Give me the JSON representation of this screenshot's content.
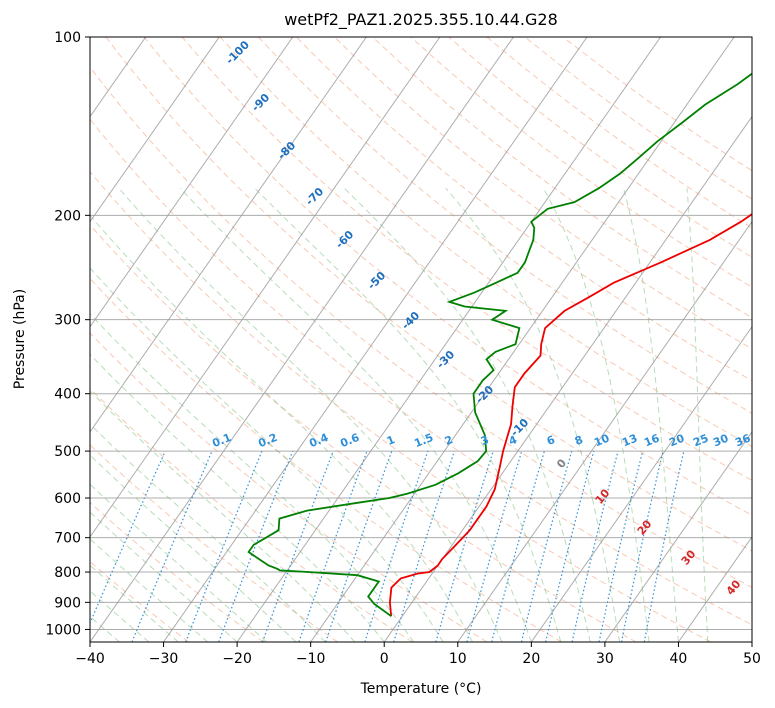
{
  "chart_data": {
    "type": "line",
    "title": "wetPf2_PAZ1.2025.355.10.44.G28",
    "xlabel": "Temperature (°C)",
    "ylabel": "Pressure (hPa)",
    "xlim": [
      -40,
      50
    ],
    "ylim": [
      1050,
      100
    ],
    "y_scale": "log",
    "grid": true,
    "x_ticks": [
      "−40",
      "−30",
      "−20",
      "−10",
      "0",
      "10",
      "20",
      "30",
      "40",
      "50"
    ],
    "y_ticks": [
      "100",
      "200",
      "300",
      "400",
      "500",
      "600",
      "700",
      "800",
      "900",
      "1000"
    ],
    "isotherm_labels": [
      {
        "text": "-100",
        "t": -100
      },
      {
        "text": "-90",
        "t": -90
      },
      {
        "text": "-80",
        "t": -80
      },
      {
        "text": "-70",
        "t": -70
      },
      {
        "text": "-60",
        "t": -60
      },
      {
        "text": "-50",
        "t": -50
      },
      {
        "text": "-40",
        "t": -40
      },
      {
        "text": "-30",
        "t": -30
      },
      {
        "text": "-20",
        "t": -20
      },
      {
        "text": "-10",
        "t": -10
      }
    ],
    "mixing_ratio_labels": [
      "0.1",
      "0.2",
      "0.4",
      "0.6",
      "1",
      "1.5",
      "2",
      "3",
      "4",
      "6",
      "8",
      "10",
      "13",
      "16",
      "20",
      "25",
      "30",
      "36"
    ],
    "mixing_ratio_values": [
      0.1,
      0.2,
      0.4,
      0.6,
      1,
      1.5,
      2,
      3,
      4,
      6,
      8,
      10,
      13,
      16,
      20,
      25,
      30,
      36
    ],
    "moist_adiabat_labels": [
      {
        "text": "0",
        "color": "#808080"
      },
      {
        "text": "10",
        "color": "#d62728"
      },
      {
        "text": "20",
        "color": "#d62728"
      },
      {
        "text": "30",
        "color": "#d62728"
      },
      {
        "text": "40",
        "color": "#d62728"
      }
    ],
    "series": [
      {
        "color": "#ee0000",
        "points": [
          [
            -1.5,
            950
          ],
          [
            -3,
            900
          ],
          [
            -4.2,
            850
          ],
          [
            -3.8,
            820
          ],
          [
            -2,
            805
          ],
          [
            -0.5,
            800
          ],
          [
            0,
            780
          ],
          [
            0,
            760
          ],
          [
            0.5,
            720
          ],
          [
            1,
            680
          ],
          [
            1,
            620
          ],
          [
            0.5,
            580
          ],
          [
            -1,
            530
          ],
          [
            -2,
            500
          ],
          [
            -3.5,
            450
          ],
          [
            -5,
            420
          ],
          [
            -6.5,
            390
          ],
          [
            -6.5,
            370
          ],
          [
            -6,
            345
          ],
          [
            -7,
            330
          ],
          [
            -8,
            310
          ],
          [
            -7,
            290
          ],
          [
            -5,
            275
          ],
          [
            -3,
            260
          ],
          [
            1.5,
            240
          ],
          [
            6,
            220
          ],
          [
            8.5,
            205
          ],
          [
            10.5,
            190
          ],
          [
            12,
            180
          ],
          [
            15,
            160
          ],
          [
            17,
            150
          ],
          [
            19,
            140
          ],
          [
            23.5,
            130
          ],
          [
            26,
            120
          ],
          [
            27,
            110
          ],
          [
            29,
            100
          ]
        ]
      },
      {
        "color": "#008000",
        "points": [
          [
            -1.5,
            950
          ],
          [
            -5,
            905
          ],
          [
            -6.5,
            880
          ],
          [
            -6.5,
            830
          ],
          [
            -10,
            810
          ],
          [
            -17,
            800
          ],
          [
            -21,
            795
          ],
          [
            -21.5,
            790
          ],
          [
            -23,
            780
          ],
          [
            -25,
            760
          ],
          [
            -27,
            740
          ],
          [
            -27,
            720
          ],
          [
            -26,
            700
          ],
          [
            -25,
            680
          ],
          [
            -26,
            650
          ],
          [
            -23,
            630
          ],
          [
            -16.5,
            610
          ],
          [
            -13,
            600
          ],
          [
            -11,
            590
          ],
          [
            -8,
            570
          ],
          [
            -6,
            545
          ],
          [
            -4.5,
            520
          ],
          [
            -4.3,
            500
          ],
          [
            -6,
            470
          ],
          [
            -9.5,
            430
          ],
          [
            -11.5,
            400
          ],
          [
            -11.5,
            380
          ],
          [
            -11,
            365
          ],
          [
            -13,
            350
          ],
          [
            -12.5,
            340
          ],
          [
            -10.5,
            330
          ],
          [
            -11.5,
            310
          ],
          [
            -16,
            300
          ],
          [
            -15,
            290
          ],
          [
            -21,
            285
          ],
          [
            -23.5,
            280
          ],
          [
            -21,
            270
          ],
          [
            -19,
            260
          ],
          [
            -17,
            250
          ],
          [
            -17,
            240
          ],
          [
            -17.5,
            230
          ],
          [
            -18,
            220
          ],
          [
            -19,
            210
          ],
          [
            -20,
            205
          ],
          [
            -19,
            195
          ],
          [
            -16,
            190
          ],
          [
            -14,
            180
          ],
          [
            -12.5,
            170
          ],
          [
            -11.5,
            160
          ],
          [
            -10.5,
            150
          ],
          [
            -9,
            140
          ],
          [
            -7.5,
            130
          ],
          [
            -5,
            120
          ],
          [
            -3,
            110
          ],
          [
            -1,
            100
          ]
        ]
      }
    ]
  }
}
